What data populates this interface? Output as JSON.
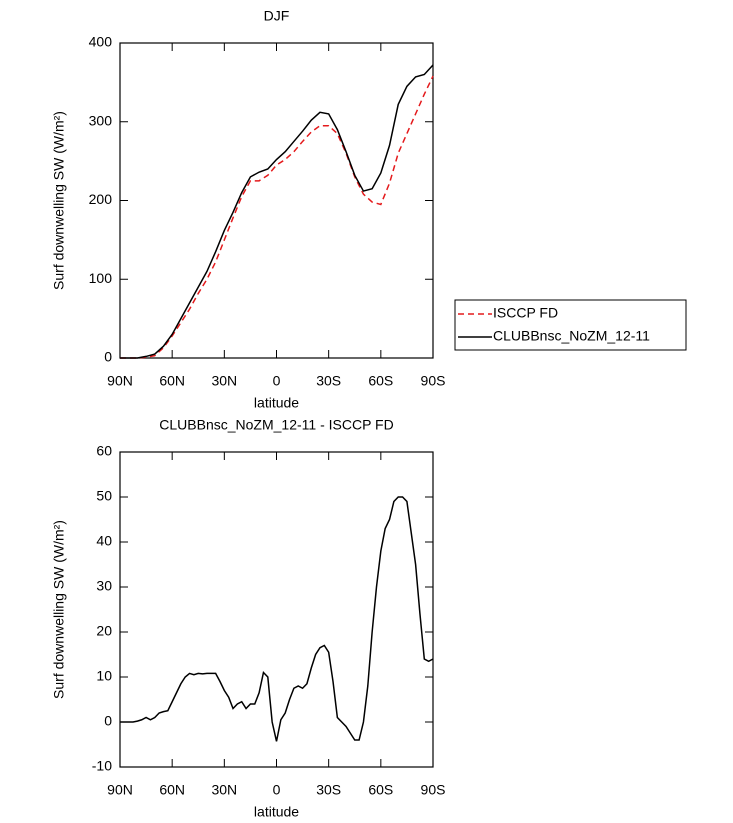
{
  "chart_data": [
    {
      "type": "line",
      "title": "DJF",
      "xlabel": "latitude",
      "ylabel": "Surf downwelling SW (W/m²)",
      "x": [
        90,
        85,
        80,
        75,
        70,
        65,
        60,
        55,
        50,
        45,
        40,
        35,
        30,
        25,
        20,
        15,
        10,
        5,
        0,
        -5,
        -10,
        -15,
        -20,
        -25,
        -30,
        -35,
        -40,
        -45,
        -50,
        -55,
        -60,
        -65,
        -70,
        -75,
        -80,
        -85,
        -90
      ],
      "series": [
        {
          "name": "ISCCP FD",
          "color": "#e41a1c",
          "linestyle": "dashed",
          "values": [
            0,
            0,
            0,
            1,
            3,
            13,
            28,
            45,
            62,
            82,
            100,
            122,
            150,
            178,
            205,
            225,
            225,
            232,
            245,
            252,
            262,
            275,
            287,
            295,
            295,
            285,
            260,
            230,
            208,
            198,
            195,
            222,
            260,
            285,
            310,
            335,
            358
          ]
        },
        {
          "name": "CLUBBnsc_NoZM_12-11",
          "color": "#000000",
          "linestyle": "solid",
          "values": [
            0,
            0,
            0,
            2,
            5,
            15,
            30,
            50,
            70,
            90,
            110,
            135,
            162,
            185,
            210,
            230,
            236,
            240,
            252,
            262,
            275,
            288,
            302,
            312,
            310,
            290,
            262,
            232,
            212,
            215,
            235,
            270,
            322,
            345,
            357,
            360,
            372
          ]
        }
      ],
      "xlim": [
        90,
        -90
      ],
      "xticks": [
        {
          "value": 90,
          "label": "90N"
        },
        {
          "value": 60,
          "label": "60N"
        },
        {
          "value": 30,
          "label": "30N"
        },
        0,
        {
          "value": -30,
          "label": "30S"
        },
        {
          "value": -60,
          "label": "60S"
        },
        {
          "value": -90,
          "label": "90S"
        }
      ],
      "ylim": [
        0,
        400
      ],
      "yticks": [
        0,
        100,
        200,
        300,
        400
      ],
      "legend": "right"
    },
    {
      "type": "line",
      "title": "CLUBBnsc_NoZM_12-11 - ISCCP FD",
      "xlabel": "latitude",
      "ylabel": "Surf downwelling SW (W/m²)",
      "x": [
        90,
        87.5,
        85,
        82.5,
        80,
        77.5,
        75,
        72.5,
        70,
        67.5,
        65,
        62.5,
        60,
        57.5,
        55,
        52.5,
        50,
        47.5,
        45,
        42.5,
        40,
        37.5,
        35,
        32.5,
        30,
        27.5,
        25,
        22.5,
        20,
        17.5,
        15,
        12.5,
        10,
        7.5,
        5,
        2.5,
        0,
        -2.5,
        -5,
        -7.5,
        -10,
        -12.5,
        -15,
        -17.5,
        -20,
        -22.5,
        -25,
        -27.5,
        -30,
        -32.5,
        -35,
        -37.5,
        -40,
        -42.5,
        -45,
        -47.5,
        -50,
        -52.5,
        -55,
        -57.5,
        -60,
        -62.5,
        -65,
        -67.5,
        -70,
        -72.5,
        -75,
        -77.5,
        -80,
        -82.5,
        -85,
        -87.5,
        -90
      ],
      "series": [
        {
          "name": "CLUBBnsc_NoZM_12-11 - ISCCP FD",
          "color": "#000000",
          "linestyle": "solid",
          "values": [
            0,
            0,
            0,
            0,
            0.2,
            0.5,
            1,
            0.5,
            1,
            2,
            2.3,
            2.5,
            4.5,
            6.5,
            8.5,
            10,
            10.8,
            10.5,
            10.8,
            10.7,
            10.8,
            10.8,
            10.8,
            9,
            7,
            5.5,
            3,
            4,
            4.5,
            3,
            4,
            4,
            6.5,
            11,
            10,
            0,
            -4.3,
            0.5,
            2,
            5,
            7.5,
            8,
            7.5,
            8.5,
            12,
            15,
            16.5,
            17,
            15.5,
            9,
            1,
            0,
            -1,
            -2.5,
            -4,
            -4,
            0,
            8,
            20,
            30,
            38,
            43,
            45,
            49,
            50,
            50,
            49,
            42,
            35,
            24,
            14,
            13.5,
            14
          ]
        }
      ],
      "xlim": [
        90,
        -90
      ],
      "xticks": [
        {
          "value": 90,
          "label": "90N"
        },
        {
          "value": 60,
          "label": "60N"
        },
        {
          "value": 30,
          "label": "30N"
        },
        0,
        {
          "value": -30,
          "label": "30S"
        },
        {
          "value": -60,
          "label": "60S"
        },
        {
          "value": -90,
          "label": "90S"
        }
      ],
      "ylim": [
        -10,
        60
      ],
      "yticks": [
        -10,
        0,
        10,
        20,
        30,
        40,
        50,
        60
      ]
    }
  ]
}
